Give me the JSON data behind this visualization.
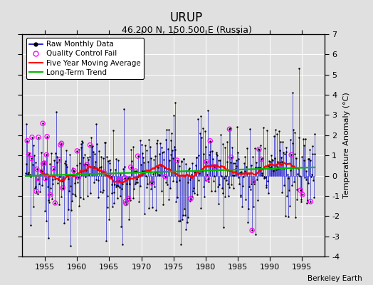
{
  "title": "URUP",
  "subtitle": "46.200 N, 150.500 E (Russia)",
  "ylabel": "Temperature Anomaly (°C)",
  "watermark": "Berkeley Earth",
  "xlim": [
    1951.5,
    1998.5
  ],
  "ylim": [
    -4,
    7
  ],
  "yticks": [
    -4,
    -3,
    -2,
    -1,
    0,
    1,
    2,
    3,
    4,
    5,
    6,
    7
  ],
  "xticks": [
    1955,
    1960,
    1965,
    1970,
    1975,
    1980,
    1985,
    1990,
    1995
  ],
  "background_color": "#e0e0e0",
  "plot_bg_color": "#e0e0e0",
  "raw_color": "#0000cc",
  "qc_color": "#ff00ff",
  "moving_avg_color": "#ff0000",
  "trend_color": "#00bb00",
  "seed": 99,
  "n_months": 540,
  "start_year": 1952.0,
  "trend_slope": 0.01,
  "trend_intercept": -0.1
}
